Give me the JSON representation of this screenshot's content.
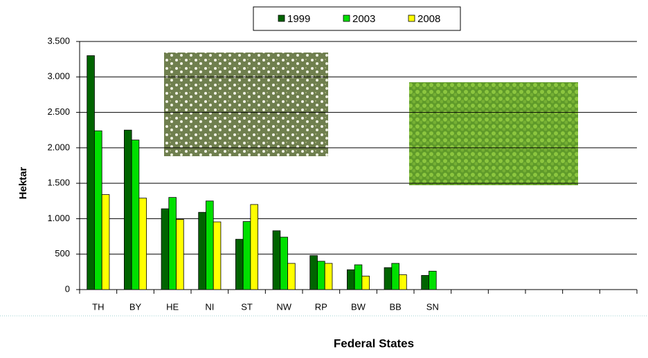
{
  "chart_data": {
    "type": "bar",
    "categories": [
      "TH",
      "BY",
      "HE",
      "NI",
      "ST",
      "NW",
      "RP",
      "BW",
      "BB",
      "SN",
      null,
      null,
      null,
      null,
      null
    ],
    "series": [
      {
        "name": "1999",
        "color": "#006400",
        "values": [
          3300,
          2250,
          1140,
          1090,
          710,
          830,
          480,
          280,
          310,
          200,
          null,
          null,
          null,
          null,
          null
        ]
      },
      {
        "name": "2003",
        "color": "#00e000",
        "values": [
          2240,
          2110,
          1300,
          1250,
          960,
          740,
          400,
          350,
          370,
          260,
          null,
          null,
          null,
          null,
          null
        ]
      },
      {
        "name": "2008",
        "color": "#ffff00",
        "values": [
          1340,
          1290,
          990,
          955,
          1200,
          370,
          370,
          190,
          210,
          null,
          null,
          null,
          null,
          null,
          null
        ]
      }
    ],
    "ylim": [
      0,
      3500
    ],
    "yticks": [
      {
        "value": 0,
        "label": "0"
      },
      {
        "value": 500,
        "label": "500"
      },
      {
        "value": 1000,
        "label": "1.000"
      },
      {
        "value": 1500,
        "label": "1.500"
      },
      {
        "value": 2000,
        "label": "2.000"
      },
      {
        "value": 2500,
        "label": "2.500"
      },
      {
        "value": 3000,
        "label": "3.000"
      },
      {
        "value": 3500,
        "label": "3.500"
      }
    ],
    "grid": true,
    "ylabel": "Hektar",
    "xlabel": "Federal States"
  }
}
